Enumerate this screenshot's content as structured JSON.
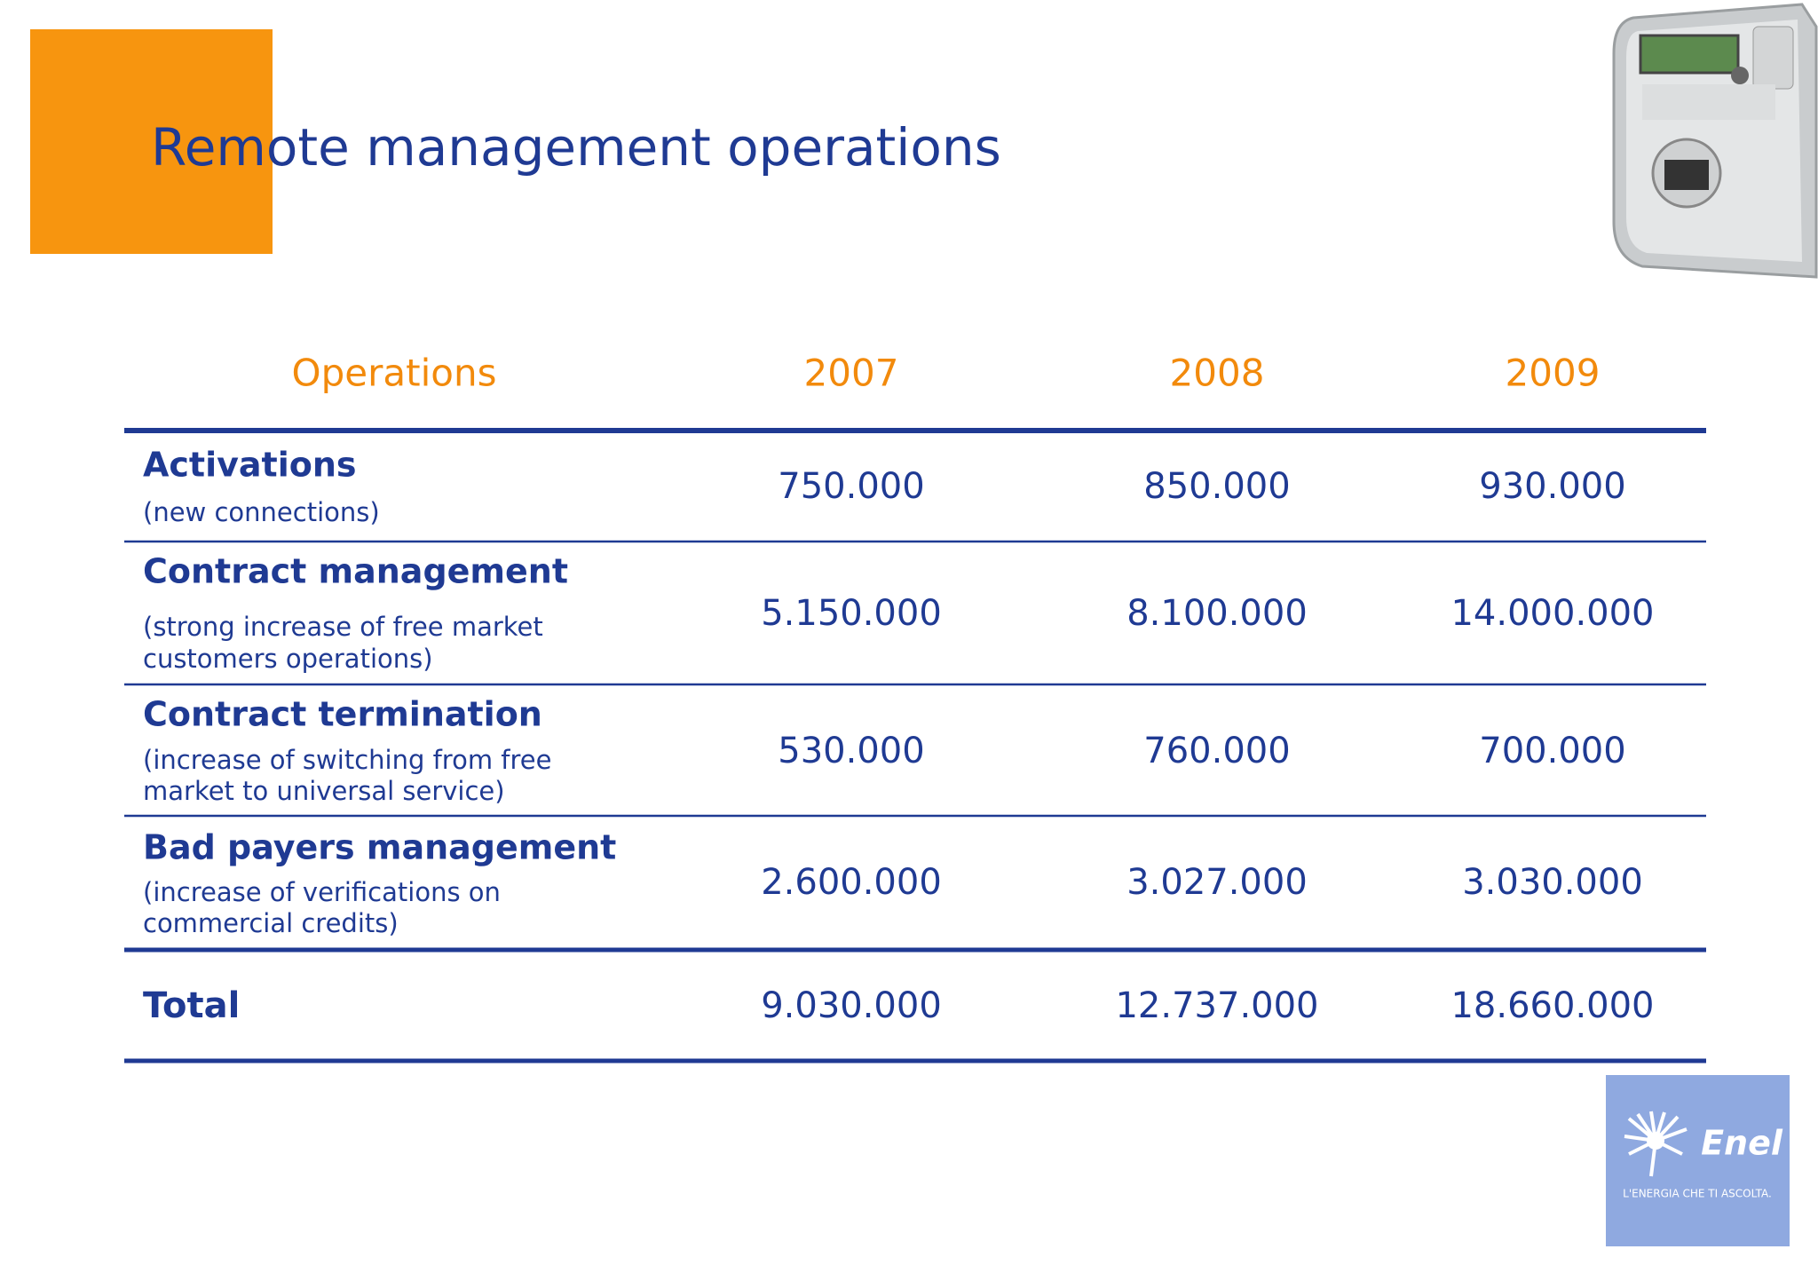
{
  "title": "Remote management operations",
  "table": {
    "header": [
      "Operations",
      "2007",
      "2008",
      "2009"
    ],
    "rows": [
      {
        "label": "Activations",
        "note": [
          "(new connections)"
        ],
        "values": [
          "750.000",
          "850.000",
          "930.000"
        ]
      },
      {
        "label": "Contract management",
        "note": [
          "(strong increase of free market",
          "customers operations)"
        ],
        "values": [
          "5.150.000",
          "8.100.000",
          "14.000.000"
        ]
      },
      {
        "label": "Contract termination",
        "note": [
          "(increase of switching from free",
          "market to universal service)"
        ],
        "values": [
          "530.000",
          "760.000",
          "700.000"
        ]
      },
      {
        "label": "Bad payers management",
        "note": [
          "(increase of verifications on",
          "commercial credits)"
        ],
        "values": [
          "2.600.000",
          "3.027.000",
          "3.030.000"
        ]
      }
    ],
    "total": {
      "label": "Total",
      "values": [
        "9.030.000",
        "12.737.000",
        "18.660.000"
      ]
    }
  },
  "logo": {
    "name": "Enel",
    "tagline": "L'ENERGIA CHE TI ASCOLTA."
  }
}
